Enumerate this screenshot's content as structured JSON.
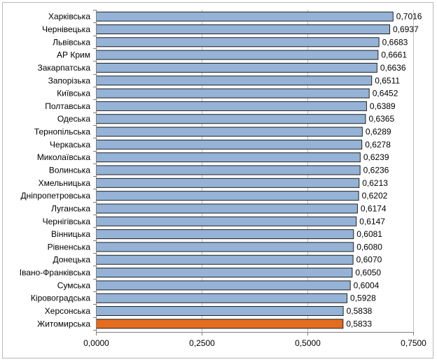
{
  "chart_data": {
    "type": "bar",
    "orientation": "horizontal",
    "categories": [
      "Харківська",
      "Чернівецька",
      "Львівська",
      "АР Крим",
      "Закарпатська",
      "Запорізька",
      "Київська",
      "Полтавська",
      "Одеська",
      "Тернопільська",
      "Черкаська",
      "Миколаївська",
      "Волинська",
      "Хмельницька",
      "Дніпропетровська",
      "Луганська",
      "Чернігівська",
      "Вінницька",
      "Рівненська",
      "Донецька",
      "Івано-Франківська",
      "Сумська",
      "Кіровоградська",
      "Херсонська",
      "Житомирська"
    ],
    "values": [
      0.7016,
      0.6937,
      0.6683,
      0.6661,
      0.6636,
      0.6511,
      0.6452,
      0.6389,
      0.6365,
      0.6289,
      0.6278,
      0.6239,
      0.6236,
      0.6213,
      0.6202,
      0.6174,
      0.6147,
      0.6081,
      0.608,
      0.607,
      0.605,
      0.6004,
      0.5928,
      0.5838,
      0.5833
    ],
    "value_labels": [
      "0,7016",
      "0,6937",
      "0,6683",
      "0,6661",
      "0,6636",
      "0,6511",
      "0,6452",
      "0,6389",
      "0,6365",
      "0,6289",
      "0,6278",
      "0,6239",
      "0,6236",
      "0,6213",
      "0,6202",
      "0,6174",
      "0,6147",
      "0,6081",
      "0,6080",
      "0,6070",
      "0,6050",
      "0,6004",
      "0,5928",
      "0,5838",
      "0,5833"
    ],
    "xlim": [
      0,
      0.75
    ],
    "xticks": [
      0,
      0.25,
      0.5,
      0.75
    ],
    "xtick_labels": [
      "0,0000",
      "0,2500",
      "0,5000",
      "0,7500"
    ],
    "title": "",
    "xlabel": "",
    "ylabel": "",
    "grid": "vertical",
    "legend": "none",
    "colors": {
      "bar": "#95b3d7",
      "highlight": "#e46c1f",
      "bar_border": "#1f1f1f",
      "grid": "#c0c0c0",
      "axis": "#7f7f7f"
    },
    "highlight_category": "Житомирська"
  }
}
